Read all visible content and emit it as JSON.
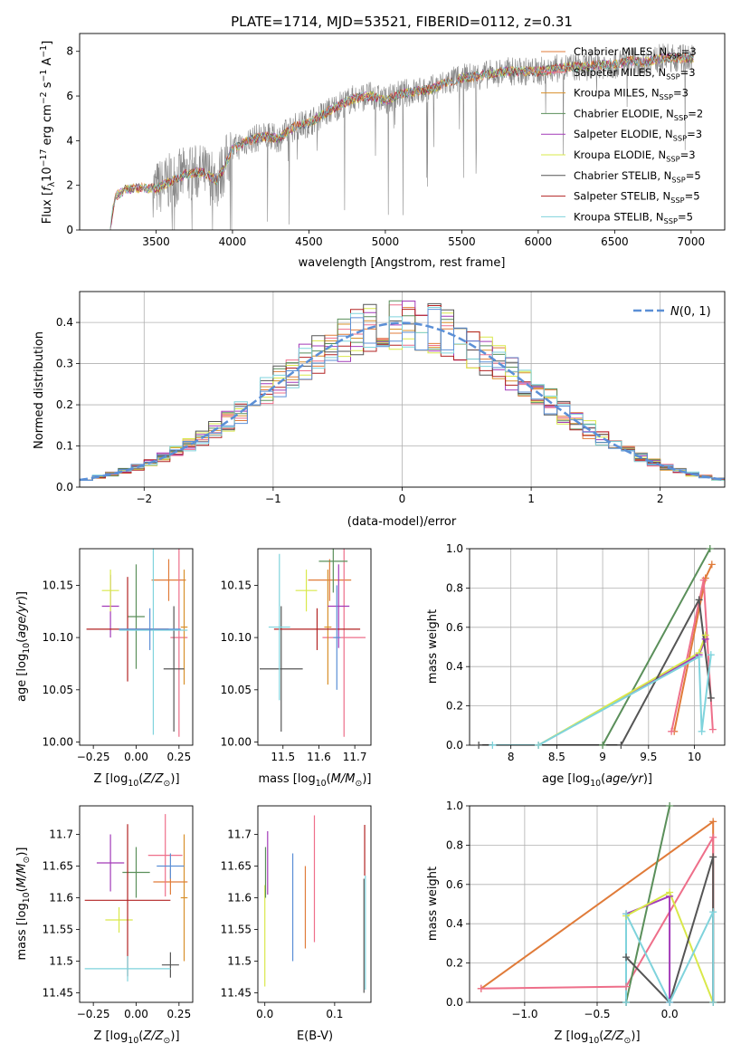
{
  "figure_title": "PLATE=1714, MJD=53521, FIBERID=0112, z=0.31",
  "colors": {
    "chabrier_miles": "#e07b39",
    "salpeter_miles": "#ee6f8a",
    "kroupa_miles": "#d8902b",
    "chabrier_elodie": "#5a8f5a",
    "salpeter_elodie": "#a23ab8",
    "kroupa_elodie": "#d9e84a",
    "chabrier_stelib": "#555555",
    "salpeter_stelib": "#b22222",
    "kroupa_stelib": "#7fd3dc",
    "data": "#888888",
    "normal": "#5b8fd6",
    "extra_blue": "#5b8fd6"
  },
  "chart_data": [
    {
      "id": "spectrum",
      "type": "line",
      "title": "",
      "xlabel": "wavelength [Angstrom, rest frame]",
      "ylabel": "Flux [f_λ 10^-17 erg cm^-2 s^-1 A^-1]",
      "xlim": [
        3000,
        7220
      ],
      "ylim": [
        0,
        8.8
      ],
      "xticks": [
        3500,
        4000,
        4500,
        5000,
        5500,
        6000,
        6500,
        7000
      ],
      "yticks": [
        0,
        2,
        4,
        6,
        8
      ],
      "continuum": {
        "x": [
          3200,
          3230,
          3300,
          3400,
          3500,
          3600,
          3700,
          3800,
          3900,
          4000,
          4100,
          4200,
          4300,
          4400,
          4500,
          4600,
          4700,
          4800,
          4900,
          5000,
          5100,
          5200,
          5300,
          5400,
          5500,
          5600,
          5700,
          5800,
          5900,
          6000,
          6100,
          6200,
          6300,
          6400,
          6500,
          6600,
          6700,
          6800,
          6900,
          7000
        ],
        "y": [
          0,
          1.5,
          1.8,
          1.9,
          1.85,
          2.2,
          2.5,
          2.6,
          2.2,
          3.6,
          4.0,
          4.2,
          4.1,
          4.6,
          4.8,
          5.2,
          5.6,
          5.9,
          6.0,
          5.8,
          6.1,
          6.2,
          6.3,
          6.6,
          6.8,
          6.9,
          7.0,
          7.1,
          7.1,
          7.1,
          7.2,
          7.3,
          7.3,
          7.4,
          7.4,
          7.6,
          7.5,
          7.7,
          7.7,
          7.7
        ]
      },
      "legend_position": "right",
      "legend": [
        {
          "label": "Chabrier MILES, N_SSP=3",
          "color_key": "chabrier_miles"
        },
        {
          "label": "Salpeter MILES, N_SSP=3",
          "color_key": "salpeter_miles"
        },
        {
          "label": "Kroupa MILES, N_SSP=3",
          "color_key": "kroupa_miles"
        },
        {
          "label": "Chabrier ELODIE, N_SSP=2",
          "color_key": "chabrier_elodie"
        },
        {
          "label": "Salpeter ELODIE, N_SSP=3",
          "color_key": "salpeter_elodie"
        },
        {
          "label": "Kroupa ELODIE, N_SSP=3",
          "color_key": "kroupa_elodie"
        },
        {
          "label": "Chabrier STELIB, N_SSP=5",
          "color_key": "chabrier_stelib"
        },
        {
          "label": "Salpeter STELIB, N_SSP=5",
          "color_key": "salpeter_stelib"
        },
        {
          "label": "Kroupa STELIB, N_SSP=5",
          "color_key": "kroupa_stelib"
        }
      ]
    },
    {
      "id": "residuals",
      "type": "line",
      "xlabel": "(data-model)/error",
      "ylabel": "Normed distribution",
      "xlim": [
        -2.5,
        2.5
      ],
      "ylim": [
        0,
        0.475
      ],
      "xticks": [
        -2,
        -1,
        0,
        1,
        2
      ],
      "yticks": [
        0.0,
        0.1,
        0.2,
        0.3,
        0.4
      ],
      "grid": true,
      "legend_position": "top-right",
      "legend_label": "N(0, 1)"
    },
    {
      "id": "age_vs_Z",
      "type": "scatter",
      "xlabel": "Z [log10(Z/Z⊙)]",
      "ylabel": "age  [log10(age/yr)]",
      "xlim": [
        -0.33,
        0.33
      ],
      "ylim": [
        9.997,
        10.185
      ],
      "xticks": [
        -0.25,
        0.0,
        0.25
      ],
      "xticklabels": [
        "−0.25",
        "0.00",
        "0.25"
      ],
      "yticks": [
        10.0,
        10.05,
        10.1,
        10.15
      ],
      "yticklabels": [
        "10.00",
        "10.05",
        "10.10",
        "10.15"
      ],
      "series": [
        {
          "color_key": "chabrier_miles",
          "x": 0.19,
          "xerr": 0.1,
          "y": 10.155,
          "yerr": 0.02
        },
        {
          "color_key": "salpeter_miles",
          "x": 0.25,
          "xerr": 0.05,
          "y": 10.1,
          "yerr": 0.095
        },
        {
          "color_key": "kroupa_miles",
          "x": 0.28,
          "xerr": 0.02,
          "y": 10.11,
          "yerr": 0.055
        },
        {
          "color_key": "chabrier_elodie",
          "x": 0.0,
          "xerr": 0.05,
          "y": 10.12,
          "yerr": 0.05
        },
        {
          "color_key": "salpeter_elodie",
          "x": -0.15,
          "xerr": 0.05,
          "y": 10.13,
          "yerr": 0.03
        },
        {
          "color_key": "kroupa_elodie",
          "x": -0.15,
          "xerr": 0.05,
          "y": 10.145,
          "yerr": 0.02
        },
        {
          "color_key": "chabrier_stelib",
          "x": 0.22,
          "xerr": 0.06,
          "y": 10.07,
          "yerr": 0.06
        },
        {
          "color_key": "salpeter_stelib",
          "x": -0.05,
          "xerr": 0.24,
          "y": 10.108,
          "yerr": 0.05
        },
        {
          "color_key": "kroupa_stelib",
          "x": 0.1,
          "xerr": 0.2,
          "y": 10.107,
          "yerr": 0.1
        },
        {
          "color_key": "extra_blue",
          "x": 0.08,
          "xerr": 0.18,
          "y": 10.108,
          "yerr": 0.02
        }
      ]
    },
    {
      "id": "age_vs_mass",
      "type": "scatter",
      "xlabel": "mass [log10(M/M⊙)]",
      "ylabel": "",
      "xlim": [
        11.43,
        11.745
      ],
      "ylim": [
        9.997,
        10.185
      ],
      "xticks": [
        11.5,
        11.6,
        11.7
      ],
      "yticks": [
        10.0,
        10.05,
        10.1,
        10.15
      ],
      "yticklabels": [
        "10.00",
        "10.05",
        "10.10",
        "10.15"
      ],
      "series": [
        {
          "color_key": "chabrier_miles",
          "x": 11.63,
          "xerr": 0.06,
          "y": 10.155,
          "yerr": 0.02
        },
        {
          "color_key": "salpeter_miles",
          "x": 11.67,
          "xerr": 0.06,
          "y": 10.1,
          "yerr": 0.095
        },
        {
          "color_key": "kroupa_miles",
          "x": 11.625,
          "xerr": 0.01,
          "y": 10.11,
          "yerr": 0.055
        },
        {
          "color_key": "chabrier_elodie",
          "x": 11.64,
          "xerr": 0.04,
          "y": 10.173,
          "yerr": 0.03
        },
        {
          "color_key": "salpeter_elodie",
          "x": 11.655,
          "xerr": 0.03,
          "y": 10.13,
          "yerr": 0.04
        },
        {
          "color_key": "kroupa_elodie",
          "x": 11.565,
          "xerr": 0.03,
          "y": 10.145,
          "yerr": 0.02
        },
        {
          "color_key": "chabrier_stelib",
          "x": 11.495,
          "xerr": 0.06,
          "y": 10.07,
          "yerr": 0.06
        },
        {
          "color_key": "salpeter_stelib",
          "x": 11.595,
          "xerr": 0.12,
          "y": 10.108,
          "yerr": 0.02
        },
        {
          "color_key": "kroupa_stelib",
          "x": 11.49,
          "xerr": 0.03,
          "y": 10.11,
          "yerr": 0.07
        },
        {
          "color_key": "extra_blue",
          "x": 11.65,
          "xerr": 0.01,
          "y": 10.1,
          "yerr": 0.05
        }
      ]
    },
    {
      "id": "mass_weight_vs_age",
      "type": "line",
      "xlabel": "age  [log10(age/yr)]",
      "ylabel": "mass weight",
      "xlim": [
        7.55,
        10.33
      ],
      "ylim": [
        0,
        1.0
      ],
      "xticks": [
        8.0,
        8.5,
        9.0,
        9.5,
        10.0
      ],
      "yticks": [
        0.0,
        0.2,
        0.4,
        0.6,
        0.8,
        1.0
      ],
      "grid": true,
      "series": [
        {
          "color_key": "chabrier_miles",
          "x": [
            9.78,
            10.12,
            10.19
          ],
          "y": [
            0.07,
            0.85,
            0.92
          ]
        },
        {
          "color_key": "salpeter_miles",
          "x": [
            9.75,
            10.1,
            10.2
          ],
          "y": [
            0.07,
            0.84,
            0.08
          ]
        },
        {
          "color_key": "chabrier_elodie",
          "x": [
            9.0,
            10.17
          ],
          "y": [
            0.0,
            1.0
          ]
        },
        {
          "color_key": "salpeter_elodie",
          "x": [
            8.3,
            10.05,
            10.12
          ],
          "y": [
            0.0,
            0.46,
            0.54
          ]
        },
        {
          "color_key": "kroupa_elodie",
          "x": [
            8.3,
            10.05,
            10.12
          ],
          "y": [
            0.0,
            0.47,
            0.56
          ]
        },
        {
          "color_key": "chabrier_stelib",
          "x": [
            7.65,
            9.2,
            10.05,
            10.18
          ],
          "y": [
            0.0,
            0.0,
            0.74,
            0.24
          ]
        },
        {
          "color_key": "kroupa_stelib",
          "x": [
            7.8,
            8.3,
            10.05,
            10.08,
            10.18
          ],
          "y": [
            0.0,
            0.0,
            0.45,
            0.07,
            0.46
          ]
        }
      ]
    },
    {
      "id": "mass_vs_Z",
      "type": "scatter",
      "xlabel": "Z [log10(Z/Z⊙)]",
      "ylabel": "mass [log10(M/M⊙)]",
      "xlim": [
        -0.33,
        0.33
      ],
      "ylim": [
        11.435,
        11.745
      ],
      "xticks": [
        -0.25,
        0.0,
        0.25
      ],
      "xticklabels": [
        "−0.25",
        "0.00",
        "0.25"
      ],
      "yticks": [
        11.45,
        11.5,
        11.55,
        11.6,
        11.65,
        11.7
      ],
      "series": [
        {
          "color_key": "chabrier_miles",
          "x": 0.2,
          "xerr": 0.1,
          "y": 11.625,
          "yerr": 0.02
        },
        {
          "color_key": "salpeter_miles",
          "x": 0.17,
          "xerr": 0.1,
          "y": 11.667,
          "yerr": 0.065
        },
        {
          "color_key": "kroupa_miles",
          "x": 0.28,
          "xerr": 0.02,
          "y": 11.6,
          "yerr": 0.1
        },
        {
          "color_key": "chabrier_elodie",
          "x": 0.0,
          "xerr": 0.08,
          "y": 11.64,
          "yerr": 0.04
        },
        {
          "color_key": "salpeter_elodie",
          "x": -0.15,
          "xerr": 0.08,
          "y": 11.655,
          "yerr": 0.045
        },
        {
          "color_key": "kroupa_elodie",
          "x": -0.1,
          "xerr": 0.08,
          "y": 11.565,
          "yerr": 0.02
        },
        {
          "color_key": "chabrier_stelib",
          "x": 0.2,
          "xerr": 0.05,
          "y": 11.494,
          "yerr": 0.02
        },
        {
          "color_key": "salpeter_stelib",
          "x": -0.05,
          "xerr": 0.25,
          "y": 11.596,
          "yerr": 0.12
        },
        {
          "color_key": "kroupa_stelib",
          "x": -0.05,
          "xerr": 0.25,
          "y": 11.488,
          "yerr": 0.02
        },
        {
          "color_key": "extra_blue",
          "x": 0.2,
          "xerr": 0.08,
          "y": 11.65,
          "yerr": 0.02
        }
      ]
    },
    {
      "id": "mass_vs_ebv",
      "type": "scatter",
      "xlabel": "E(B-V)",
      "ylabel": "",
      "xlim": [
        -0.01,
        0.152
      ],
      "ylim": [
        11.435,
        11.745
      ],
      "xticks": [
        0.0,
        0.1
      ],
      "xticklabels": [
        "0.0",
        "0.1"
      ],
      "yticks": [
        11.45,
        11.5,
        11.55,
        11.6,
        11.65,
        11.7
      ],
      "series": [
        {
          "color_key": "kroupa_elodie",
          "x": 0.0,
          "xerr": 0.0,
          "y": 11.54,
          "yerr": 0.08
        },
        {
          "color_key": "chabrier_elodie",
          "x": 0.001,
          "xerr": 0.0,
          "y": 11.64,
          "yerr": 0.04
        },
        {
          "color_key": "salpeter_elodie",
          "x": 0.004,
          "xerr": 0.0,
          "y": 11.655,
          "yerr": 0.05
        },
        {
          "color_key": "extra_blue",
          "x": 0.04,
          "xerr": 0.0,
          "y": 11.585,
          "yerr": 0.085
        },
        {
          "color_key": "chabrier_miles",
          "x": 0.058,
          "xerr": 0.0,
          "y": 11.585,
          "yerr": 0.065
        },
        {
          "color_key": "salpeter_miles",
          "x": 0.071,
          "xerr": 0.0,
          "y": 11.63,
          "yerr": 0.1
        },
        {
          "color_key": "salpeter_stelib",
          "x": 0.143,
          "xerr": 0.0,
          "y": 11.675,
          "yerr": 0.04
        },
        {
          "color_key": "kroupa_stelib",
          "x": 0.144,
          "xerr": 0.0,
          "y": 11.545,
          "yerr": 0.09
        },
        {
          "color_key": "chabrier_stelib",
          "x": 0.142,
          "xerr": 0.0,
          "y": 11.54,
          "yerr": 0.09
        }
      ]
    },
    {
      "id": "mass_weight_vs_Z",
      "type": "line",
      "xlabel": "Z [log10(Z/Z⊙)]",
      "ylabel": "mass weight",
      "xlim": [
        -1.38,
        0.38
      ],
      "ylim": [
        0,
        1.0
      ],
      "xticks": [
        -1.0,
        -0.5,
        0.0
      ],
      "xticklabels": [
        "−1.0",
        "−0.5",
        "0.0"
      ],
      "yticks": [
        0.0,
        0.2,
        0.4,
        0.6,
        0.8,
        1.0
      ],
      "grid": true,
      "series": [
        {
          "color_key": "chabrier_miles",
          "x": [
            -1.3,
            0.3,
            0.3
          ],
          "y": [
            0.07,
            0.92,
            0.0
          ]
        },
        {
          "color_key": "salpeter_miles",
          "x": [
            -1.3,
            -0.3,
            0.3,
            0.3
          ],
          "y": [
            0.07,
            0.08,
            0.84,
            0.0
          ]
        },
        {
          "color_key": "chabrier_elodie",
          "x": [
            -0.3,
            0.0
          ],
          "y": [
            0.0,
            1.0
          ]
        },
        {
          "color_key": "salpeter_elodie",
          "x": [
            -0.3,
            0.0,
            0.0
          ],
          "y": [
            0.45,
            0.54,
            0.0
          ]
        },
        {
          "color_key": "kroupa_elodie",
          "x": [
            -0.3,
            0.0,
            0.3
          ],
          "y": [
            0.44,
            0.56,
            0.0
          ]
        },
        {
          "color_key": "chabrier_stelib",
          "x": [
            -0.3,
            -0.3,
            0.0,
            0.3,
            0.3
          ],
          "y": [
            0.0,
            0.23,
            0.0,
            0.74,
            0.0
          ]
        },
        {
          "color_key": "kroupa_stelib",
          "x": [
            -0.3,
            -0.3,
            0.0,
            0.3,
            0.3
          ],
          "y": [
            0.0,
            0.45,
            0.0,
            0.46,
            0.0
          ]
        }
      ]
    }
  ]
}
